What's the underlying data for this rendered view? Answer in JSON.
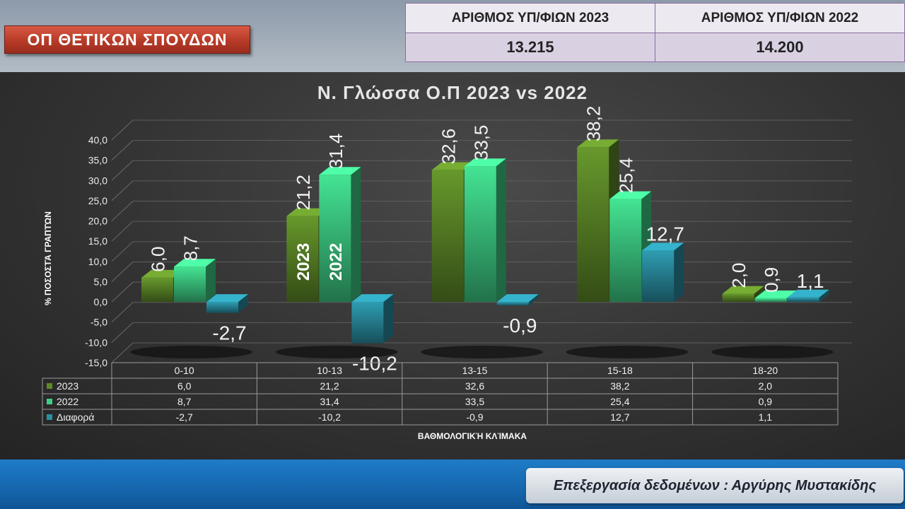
{
  "header": {
    "program_label": "ΟΠ ΘΕΤΙΚΩΝ ΣΠΟΥΔΩΝ",
    "candidates": {
      "col1_label": "ΑΡΙΘΜΟΣ ΥΠ/ΦΙΩΝ 2023",
      "col2_label": "ΑΡΙΘΜΟΣ ΥΠ/ΦΙΩΝ 2022",
      "col1_value": "13.215",
      "col2_value": "14.200"
    }
  },
  "footer": {
    "credit": "Επεξεργασία δεδομένων : Αργύρης Μυστακίδης"
  },
  "colors": {
    "series_2023": "#5e8a28",
    "series_2022": "#3ecf86",
    "series_diff": "#2a8fa3"
  },
  "chart_data": {
    "type": "bar",
    "title": "Ν. Γλώσσα Ο.Π 2023 vs 2022",
    "xlabel": "ΒΑΘΜΟΛΟΓΙΚΉ ΚΛΊΜΑΚΑ",
    "ylabel": "% ΠΟΣΟΣΤΆ ΓΡΑΠΤΏΝ",
    "ylim": [
      -15,
      40
    ],
    "yticks": [
      "40,0",
      "35,0",
      "30,0",
      "25,0",
      "20,0",
      "15,0",
      "10,0",
      "5,0",
      "0,0",
      "-5,0",
      "-10,0",
      "-15,0"
    ],
    "categories": [
      "0-10",
      "10-13",
      "13-15",
      "15-18",
      "18-20"
    ],
    "series": [
      {
        "name": "2023",
        "values": [
          6.0,
          21.2,
          32.6,
          38.2,
          2.0
        ],
        "labels": [
          "6,0",
          "21,2",
          "32,6",
          "38,2",
          "2,0"
        ]
      },
      {
        "name": "2022",
        "values": [
          8.7,
          31.4,
          33.5,
          25.4,
          0.9
        ],
        "labels": [
          "8,7",
          "31,4",
          "33,5",
          "25,4",
          "0,9"
        ]
      },
      {
        "name": "Διαφορά",
        "values": [
          -2.7,
          -10.2,
          -0.9,
          12.7,
          1.1
        ],
        "labels": [
          "-2,7",
          "-10,2",
          "-0,9",
          "12,7",
          "1,1"
        ]
      }
    ],
    "bar_annotations": {
      "bar_2023": "2023",
      "bar_2022": "2022"
    },
    "grid": true,
    "data_table": true
  }
}
